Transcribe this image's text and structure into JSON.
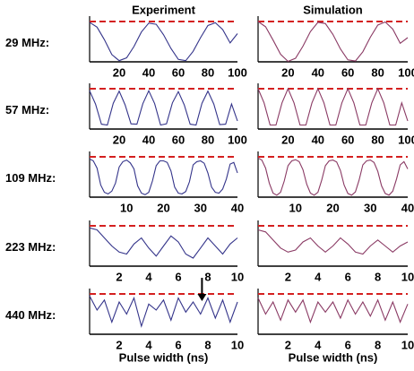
{
  "chart_data": [
    {
      "type": "line",
      "title": "Experiment",
      "ylabel": "29 MHz:",
      "x": [
        0,
        5,
        10,
        15,
        20,
        25,
        30,
        35,
        40,
        45,
        50,
        55,
        60,
        65,
        70,
        75,
        80,
        85,
        90,
        95,
        100
      ],
      "series": [
        {
          "color": "#34348a",
          "values": [
            0.98,
            0.86,
            0.55,
            0.18,
            0.03,
            0.1,
            0.38,
            0.74,
            0.96,
            0.93,
            0.67,
            0.33,
            0.06,
            0.03,
            0.26,
            0.6,
            0.9,
            0.97,
            0.8,
            0.47,
            0.7
          ]
        }
      ],
      "xlim": [
        0,
        100
      ],
      "ylim": [
        0,
        1
      ],
      "xticks": [
        20,
        40,
        60,
        80,
        100
      ],
      "ref_line": 1
    },
    {
      "type": "line",
      "title": "Simulation",
      "x": [
        0,
        5,
        10,
        15,
        20,
        25,
        30,
        35,
        40,
        45,
        50,
        55,
        60,
        65,
        70,
        75,
        80,
        85,
        90,
        95,
        100
      ],
      "series": [
        {
          "color": "#8a3a64",
          "values": [
            1,
            0.87,
            0.54,
            0.19,
            0.01,
            0.09,
            0.39,
            0.75,
            0.98,
            0.95,
            0.68,
            0.32,
            0.05,
            0.02,
            0.25,
            0.61,
            0.91,
            0.99,
            0.81,
            0.46,
            0.6
          ]
        }
      ],
      "xlim": [
        0,
        100
      ],
      "ylim": [
        0,
        1
      ],
      "xticks": [
        20,
        40,
        60,
        80,
        100
      ],
      "ref_line": 1
    },
    {
      "type": "line",
      "ylabel": "57 MHz:",
      "x": [
        0,
        4,
        8,
        12,
        16,
        20,
        24,
        28,
        32,
        36,
        40,
        44,
        48,
        52,
        56,
        60,
        64,
        68,
        72,
        76,
        80,
        84,
        88,
        92,
        96,
        100
      ],
      "series": [
        {
          "color": "#34348a",
          "values": [
            0.95,
            0.62,
            0.12,
            0.1,
            0.64,
            0.94,
            0.6,
            0.13,
            0.12,
            0.63,
            0.95,
            0.63,
            0.1,
            0.13,
            0.65,
            0.93,
            0.6,
            0.12,
            0.1,
            0.64,
            0.94,
            0.62,
            0.11,
            0.12,
            0.62,
            0.2
          ]
        }
      ],
      "xlim": [
        0,
        100
      ],
      "ylim": [
        0,
        1
      ],
      "xticks": [
        20,
        40,
        60,
        80,
        100
      ],
      "ref_line": 1
    },
    {
      "type": "line",
      "x": [
        0,
        4,
        8,
        12,
        16,
        20,
        24,
        28,
        32,
        36,
        40,
        44,
        48,
        52,
        56,
        60,
        64,
        68,
        72,
        76,
        80,
        84,
        88,
        92,
        96,
        100
      ],
      "series": [
        {
          "color": "#8a3a64",
          "values": [
            1,
            0.65,
            0.1,
            0.1,
            0.65,
            1,
            0.65,
            0.1,
            0.1,
            0.65,
            1,
            0.65,
            0.1,
            0.1,
            0.65,
            1,
            0.65,
            0.1,
            0.1,
            0.65,
            1,
            0.65,
            0.1,
            0.1,
            0.65,
            0.2
          ]
        }
      ],
      "xlim": [
        0,
        100
      ],
      "ylim": [
        0,
        1
      ],
      "xticks": [
        20,
        40,
        60,
        80,
        100
      ],
      "ref_line": 1
    },
    {
      "type": "line",
      "ylabel": "109 MHz:",
      "x": [
        0,
        1,
        2,
        3,
        4,
        5,
        6,
        7,
        8,
        9,
        10,
        11,
        12,
        13,
        14,
        15,
        16,
        17,
        18,
        19,
        20,
        21,
        22,
        23,
        24,
        25,
        26,
        27,
        28,
        29,
        30,
        31,
        32,
        33,
        34,
        35,
        36,
        37,
        38,
        39,
        40
      ],
      "series": [
        {
          "color": "#34348a",
          "values": [
            0.95,
            0.9,
            0.72,
            0.3,
            0.12,
            0.08,
            0.15,
            0.35,
            0.75,
            0.88,
            0.92,
            0.85,
            0.7,
            0.28,
            0.1,
            0.06,
            0.12,
            0.4,
            0.78,
            0.9,
            0.9,
            0.86,
            0.65,
            0.25,
            0.1,
            0.08,
            0.14,
            0.38,
            0.8,
            0.88,
            0.9,
            0.84,
            0.6,
            0.25,
            0.12,
            0.1,
            0.2,
            0.45,
            0.82,
            0.86,
            0.6
          ]
        }
      ],
      "xlim": [
        0,
        40
      ],
      "ylim": [
        0,
        1
      ],
      "xticks": [
        10,
        20,
        30,
        40
      ],
      "ref_line": 1
    },
    {
      "type": "line",
      "x": [
        0,
        1,
        2,
        3,
        4,
        5,
        6,
        7,
        8,
        9,
        10,
        11,
        12,
        13,
        14,
        15,
        16,
        17,
        18,
        19,
        20,
        21,
        22,
        23,
        24,
        25,
        26,
        27,
        28,
        29,
        30,
        31,
        32,
        33,
        34,
        35,
        36,
        37,
        38,
        39,
        40
      ],
      "series": [
        {
          "color": "#8a3a64",
          "values": [
            0.97,
            0.92,
            0.72,
            0.35,
            0.1,
            0.05,
            0.12,
            0.4,
            0.78,
            0.9,
            0.93,
            0.88,
            0.68,
            0.32,
            0.1,
            0.05,
            0.12,
            0.42,
            0.78,
            0.9,
            0.92,
            0.87,
            0.66,
            0.3,
            0.09,
            0.05,
            0.13,
            0.42,
            0.8,
            0.9,
            0.92,
            0.86,
            0.64,
            0.28,
            0.09,
            0.05,
            0.15,
            0.45,
            0.8,
            0.88,
            0.7
          ]
        }
      ],
      "xlim": [
        0,
        40
      ],
      "ylim": [
        0,
        1
      ],
      "xticks": [
        10,
        20,
        30,
        40
      ],
      "ref_line": 1
    },
    {
      "type": "line",
      "ylabel": "223 MHz:",
      "x": [
        0,
        0.5,
        1,
        1.5,
        2,
        2.5,
        3,
        3.5,
        4,
        4.5,
        5,
        5.5,
        6,
        6.5,
        7,
        7.5,
        8,
        8.5,
        9,
        9.5,
        10
      ],
      "series": [
        {
          "color": "#34348a",
          "values": [
            0.95,
            0.9,
            0.7,
            0.5,
            0.35,
            0.3,
            0.55,
            0.7,
            0.45,
            0.25,
            0.5,
            0.75,
            0.6,
            0.3,
            0.2,
            0.45,
            0.7,
            0.5,
            0.3,
            0.55,
            0.7
          ]
        }
      ],
      "xlim": [
        0,
        10
      ],
      "ylim": [
        0,
        1
      ],
      "xticks": [
        2,
        4,
        6,
        8,
        10
      ],
      "ref_line": 1
    },
    {
      "type": "line",
      "x": [
        0,
        0.5,
        1,
        1.5,
        2,
        2.5,
        3,
        3.5,
        4,
        4.5,
        5,
        5.5,
        6,
        6.5,
        7,
        7.5,
        8,
        8.5,
        9,
        9.5,
        10
      ],
      "series": [
        {
          "color": "#8a3a64",
          "values": [
            0.9,
            0.85,
            0.65,
            0.45,
            0.35,
            0.4,
            0.6,
            0.7,
            0.5,
            0.35,
            0.5,
            0.7,
            0.55,
            0.35,
            0.3,
            0.5,
            0.65,
            0.5,
            0.35,
            0.5,
            0.6
          ]
        }
      ],
      "xlim": [
        0,
        10
      ],
      "ylim": [
        0,
        1
      ],
      "xticks": [
        2,
        4,
        6,
        8,
        10
      ],
      "ref_line": 1
    },
    {
      "type": "line",
      "ylabel": "440 MHz:",
      "xlabel": "Pulse width (ns)",
      "arrow_x": 7.6,
      "x": [
        0,
        0.5,
        1,
        1.5,
        2,
        2.5,
        3,
        3.5,
        4,
        4.5,
        5,
        5.5,
        6,
        6.5,
        7,
        7.5,
        8,
        8.5,
        9,
        9.5,
        10
      ],
      "series": [
        {
          "color": "#34348a",
          "values": [
            0.95,
            0.6,
            0.85,
            0.3,
            0.8,
            0.5,
            0.9,
            0.2,
            0.75,
            0.6,
            0.85,
            0.35,
            0.9,
            0.55,
            0.8,
            0.5,
            0.9,
            0.4,
            0.85,
            0.3,
            0.8
          ]
        }
      ],
      "xlim": [
        0,
        10
      ],
      "ylim": [
        0,
        1
      ],
      "xticks": [
        2,
        4,
        6,
        8,
        10
      ],
      "ref_line": 1
    },
    {
      "type": "line",
      "xlabel": "Pulse width (ns)",
      "x": [
        0,
        0.5,
        1,
        1.5,
        2,
        2.5,
        3,
        3.5,
        4,
        4.5,
        5,
        5.5,
        6,
        6.5,
        7,
        7.5,
        8,
        8.5,
        9,
        9.5,
        10
      ],
      "series": [
        {
          "color": "#8a3a64",
          "values": [
            0.9,
            0.5,
            0.8,
            0.35,
            0.85,
            0.55,
            0.85,
            0.3,
            0.8,
            0.55,
            0.8,
            0.4,
            0.85,
            0.5,
            0.8,
            0.45,
            0.85,
            0.35,
            0.8,
            0.3,
            0.75
          ]
        }
      ],
      "xlim": [
        0,
        10
      ],
      "ylim": [
        0,
        1
      ],
      "xticks": [
        2,
        4,
        6,
        8,
        10
      ],
      "ref_line": 1
    }
  ]
}
